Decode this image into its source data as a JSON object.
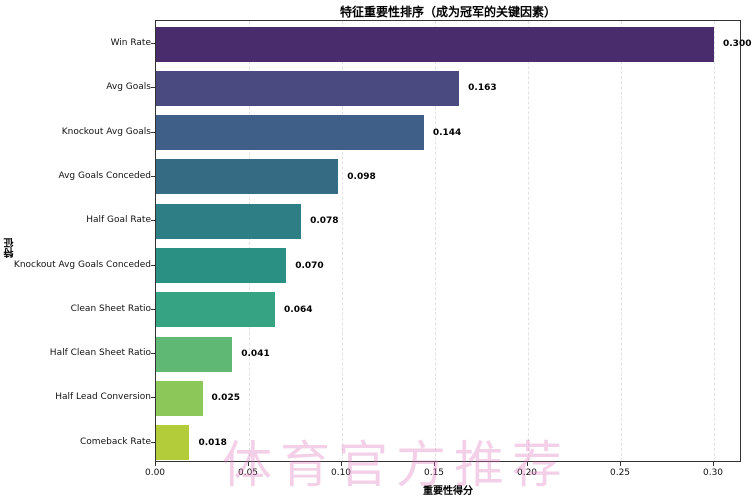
{
  "chart_data": {
    "type": "bar",
    "orientation": "horizontal",
    "title": "特征重要性排序（成为冠军的关键因素）",
    "xlabel": "重要性得分",
    "ylabel": "特征",
    "xlim": [
      0,
      0.315
    ],
    "xticks": [
      "0.00",
      "0.05",
      "0.10",
      "0.15",
      "0.20",
      "0.25",
      "0.30"
    ],
    "xtick_values": [
      0,
      0.05,
      0.1,
      0.15,
      0.2,
      0.25,
      0.3
    ],
    "grid": "x dashed",
    "categories": [
      "Win Rate",
      "Avg Goals",
      "Knockout Avg Goals",
      "Avg Goals Conceded",
      "Half Goal Rate",
      "Knockout Avg Goals Conceded",
      "Clean Sheet Ratio",
      "Half Clean Sheet Ratio",
      "Half Lead Conversion",
      "Comeback Rate"
    ],
    "values": [
      0.3,
      0.163,
      0.144,
      0.098,
      0.078,
      0.07,
      0.064,
      0.041,
      0.025,
      0.018
    ],
    "value_labels": [
      "0.300",
      "0.163",
      "0.144",
      "0.098",
      "0.078",
      "0.070",
      "0.064",
      "0.041",
      "0.025",
      "0.018"
    ],
    "colors": [
      "#482c6b",
      "#4a4a80",
      "#3f5f88",
      "#356c84",
      "#2e7f85",
      "#2a9084",
      "#36a482",
      "#5fb873",
      "#8cc759",
      "#b3cc3a"
    ],
    "colormap": "viridis"
  },
  "watermark": "体育官方推荐"
}
